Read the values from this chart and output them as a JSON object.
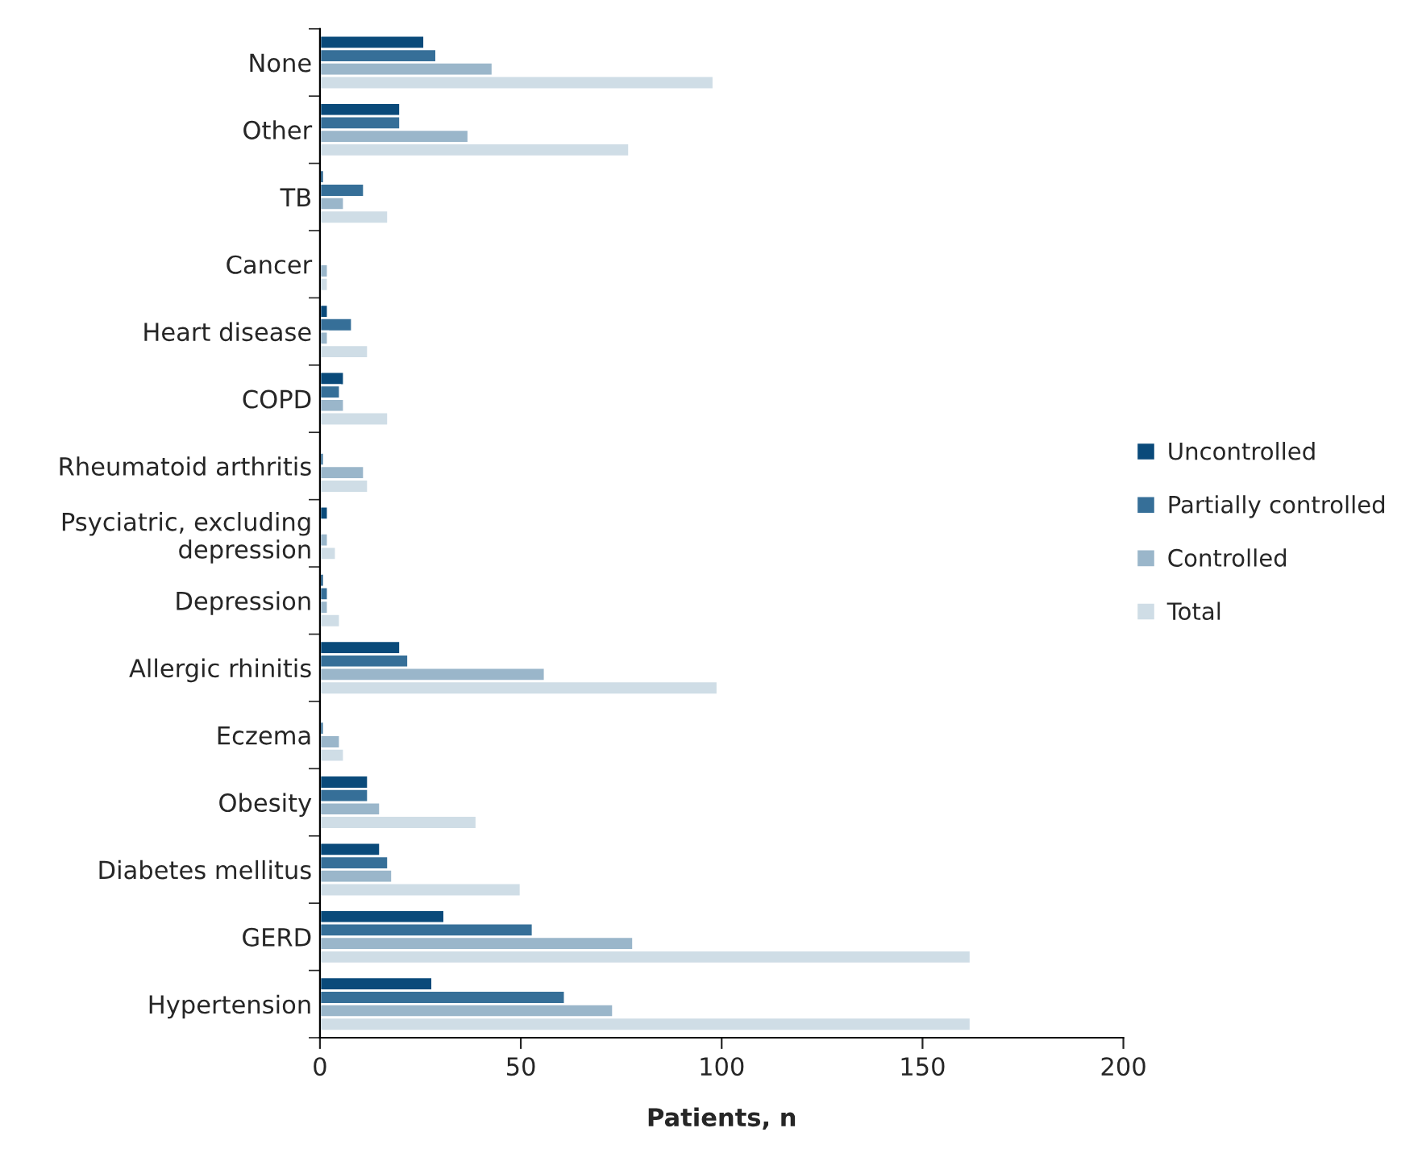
{
  "chart_data": {
    "type": "bar",
    "orientation": "horizontal",
    "xlabel": "Patients, n",
    "categories": [
      "None",
      "Other",
      "TB",
      "Cancer",
      "Heart disease",
      "COPD",
      "Rheumatoid arthritis",
      "Psyciatric, excluding\ndepression",
      "Depression",
      "Allergic rhinitis",
      "Eczema",
      "Obesity",
      "Diabetes mellitus",
      "GERD",
      "Hypertension"
    ],
    "series": [
      {
        "name": "Uncontrolled",
        "color": "#0a4a7a",
        "values": [
          26,
          20,
          1,
          null,
          2,
          6,
          null,
          2,
          1,
          20,
          null,
          12,
          15,
          31,
          28
        ]
      },
      {
        "name": "Partially controlled",
        "color": "#366f98",
        "values": [
          29,
          20,
          11,
          null,
          8,
          5,
          1,
          null,
          2,
          22,
          1,
          12,
          17,
          53,
          61
        ]
      },
      {
        "name": "Controlled",
        "color": "#9ab6ca",
        "values": [
          43,
          37,
          6,
          2,
          2,
          6,
          11,
          2,
          2,
          56,
          5,
          15,
          18,
          78,
          73
        ]
      },
      {
        "name": "Total",
        "color": "#cfdde6",
        "values": [
          98,
          77,
          17,
          2,
          12,
          17,
          12,
          4,
          5,
          99,
          6,
          39,
          50,
          162,
          162
        ]
      }
    ],
    "xlim": [
      0,
      200
    ],
    "xticks": [
      0,
      50,
      100,
      150,
      200
    ],
    "grid": false,
    "legend": "right"
  }
}
